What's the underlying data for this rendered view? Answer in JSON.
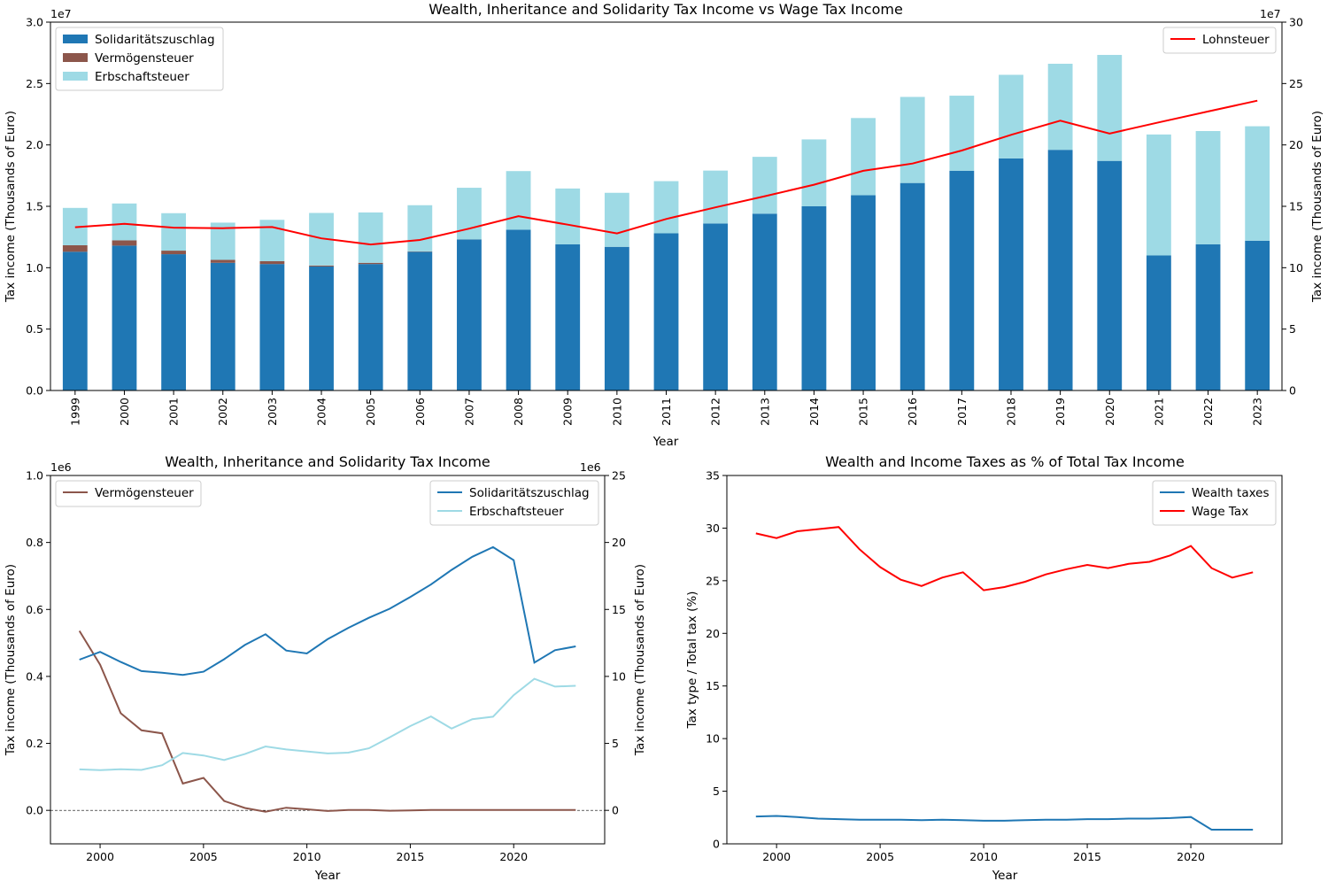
{
  "chart_data": [
    {
      "type": "bar",
      "title": "Wealth, Inheritance and Solidarity Tax Income vs Wage Tax Income",
      "xlabel": "Year",
      "ylabel": "Tax income (Thousands of Euro)",
      "ylabel_right": "Tax income (Thousands of Euro)",
      "ylim": [
        0,
        30000000
      ],
      "ylim_right": [
        0,
        300000000
      ],
      "y_offset_label": "1e7",
      "y_offset_label_right": "1e7",
      "yticks": [
        "0.0",
        "0.5",
        "1.0",
        "1.5",
        "2.0",
        "2.5",
        "3.0"
      ],
      "yticks_right": [
        "0",
        "5",
        "10",
        "15",
        "20",
        "25",
        "30"
      ],
      "stacked": true,
      "categories": [
        "1999",
        "2000",
        "2001",
        "2002",
        "2003",
        "2004",
        "2005",
        "2006",
        "2007",
        "2008",
        "2009",
        "2010",
        "2011",
        "2012",
        "2013",
        "2014",
        "2015",
        "2016",
        "2017",
        "2018",
        "2019",
        "2020",
        "2021",
        "2022",
        "2023"
      ],
      "series": [
        {
          "name": "Solidaritätszuschlag",
          "color": "#1f77b4",
          "values": [
            11300000,
            11800000,
            11100000,
            10400000,
            10300000,
            10100000,
            10300000,
            11300000,
            12300000,
            13100000,
            11900000,
            11700000,
            12800000,
            13600000,
            14400000,
            15000000,
            15900000,
            16900000,
            17900000,
            18900000,
            19600000,
            18700000,
            11000000,
            11900000,
            12200000
          ]
        },
        {
          "name": "Vermögensteuer",
          "color": "#8c564b",
          "values": [
            530000,
            430000,
            290000,
            240000,
            230000,
            80000,
            100000,
            30000,
            10000,
            0,
            0,
            0,
            0,
            0,
            0,
            0,
            0,
            0,
            0,
            0,
            0,
            0,
            0,
            0,
            0
          ]
        },
        {
          "name": "Erbschaftsteuer",
          "color": "#9edae5",
          "values": [
            3040000,
            3000000,
            3050000,
            3030000,
            3370000,
            4280000,
            4100000,
            3760000,
            4200000,
            4770000,
            4550000,
            4400000,
            4250000,
            4310000,
            4630000,
            5450000,
            6290000,
            7010000,
            6110000,
            6810000,
            7010000,
            8630000,
            9850000,
            9230000,
            9320000
          ]
        },
        {
          "name": "Lohnsteuer",
          "color": "#ff0000",
          "axis": "right",
          "type": "line",
          "values": [
            133000000,
            135700000,
            132600000,
            132200000,
            133100000,
            123900000,
            118900000,
            122600000,
            131800000,
            141900000,
            135100000,
            127900000,
            139700000,
            149100000,
            158200000,
            167600000,
            178900000,
            184800000,
            195400000,
            208200000,
            219700000,
            209300000,
            218400000,
            227200000,
            236000000
          ]
        }
      ],
      "legend": [
        {
          "position": "top-left",
          "entries": [
            "Solidaritätszuschlag",
            "Vermögensteuer",
            "Erbschaftsteuer"
          ]
        },
        {
          "position": "top-right",
          "entries": [
            "Lohnsteuer"
          ]
        }
      ]
    },
    {
      "type": "line",
      "title": "Wealth, Inheritance and Solidarity Tax Income",
      "xlabel": "Year",
      "ylabel": "Tax income (Thousands of Euro)",
      "ylabel_right": "Tax income (Thousands of Euro)",
      "y_offset_label": "1e6",
      "y_offset_label_right": "1e6",
      "xlim": [
        1997.6,
        2024.4
      ],
      "xticks": [
        "2000",
        "2005",
        "2010",
        "2015",
        "2020"
      ],
      "ylim": [
        -100000,
        1000000
      ],
      "ylim_right": [
        -2500000,
        25000000
      ],
      "yticks": [
        "0.0",
        "0.2",
        "0.4",
        "0.6",
        "0.8",
        "1.0"
      ],
      "yticks_right": [
        "0",
        "5",
        "10",
        "15",
        "20",
        "25"
      ],
      "zero_line": true,
      "x": [
        1999,
        2000,
        2001,
        2002,
        2003,
        2004,
        2005,
        2006,
        2007,
        2008,
        2009,
        2010,
        2011,
        2012,
        2013,
        2014,
        2015,
        2016,
        2017,
        2018,
        2019,
        2020,
        2021,
        2022,
        2023
      ],
      "series": [
        {
          "name": "Vermögensteuer",
          "axis": "left",
          "color": "#8c564b",
          "values": [
            536000,
            435000,
            290000,
            239000,
            230000,
            80000,
            97000,
            28000,
            7000,
            -4000,
            8000,
            3000,
            -2000,
            1000,
            1000,
            -1000,
            0,
            1000,
            1000,
            1000,
            1000,
            1000,
            1000,
            1000,
            1000
          ]
        },
        {
          "name": "Solidaritätszuschlag",
          "axis": "right",
          "color": "#1f77b4",
          "values": [
            11250000,
            11830000,
            11080000,
            10400000,
            10280000,
            10110000,
            10350000,
            11280000,
            12350000,
            13150000,
            11930000,
            11710000,
            12780000,
            13620000,
            14380000,
            15050000,
            15930000,
            16860000,
            17950000,
            18930000,
            19650000,
            18680000,
            11030000,
            11960000,
            12240000
          ]
        },
        {
          "name": "Erbschaftsteuer",
          "axis": "right",
          "color": "#9edae5",
          "values": [
            3060000,
            3000000,
            3070000,
            3020000,
            3370000,
            4280000,
            4100000,
            3760000,
            4200000,
            4770000,
            4550000,
            4400000,
            4250000,
            4310000,
            4630000,
            5450000,
            6290000,
            7010000,
            6110000,
            6810000,
            6990000,
            8600000,
            9820000,
            9240000,
            9300000
          ]
        }
      ],
      "legend": [
        {
          "position": "top-left",
          "entries": [
            "Vermögensteuer"
          ]
        },
        {
          "position": "top-right",
          "entries": [
            "Solidaritätszuschlag",
            "Erbschaftsteuer"
          ]
        }
      ]
    },
    {
      "type": "line",
      "title": "Wealth and Income Taxes as % of Total Tax Income",
      "xlabel": "Year",
      "ylabel": "Tax type / Total tax (%)",
      "xlim": [
        1997.6,
        2024.4
      ],
      "xticks": [
        "2000",
        "2005",
        "2010",
        "2015",
        "2020"
      ],
      "ylim": [
        0,
        35
      ],
      "yticks": [
        "0",
        "5",
        "10",
        "15",
        "20",
        "25",
        "30",
        "35"
      ],
      "x": [
        1999,
        2000,
        2001,
        2002,
        2003,
        2004,
        2005,
        2006,
        2007,
        2008,
        2009,
        2010,
        2011,
        2012,
        2013,
        2014,
        2015,
        2016,
        2017,
        2018,
        2019,
        2020,
        2021,
        2022,
        2023
      ],
      "series": [
        {
          "name": "Wealth taxes",
          "color": "#1f77b4",
          "values": [
            2.6,
            2.65,
            2.55,
            2.4,
            2.35,
            2.3,
            2.3,
            2.3,
            2.25,
            2.3,
            2.25,
            2.2,
            2.2,
            2.25,
            2.3,
            2.3,
            2.35,
            2.35,
            2.4,
            2.4,
            2.45,
            2.55,
            1.35,
            1.35,
            1.35
          ]
        },
        {
          "name": "Wage Tax",
          "color": "#ff0000",
          "values": [
            29.5,
            29.05,
            29.7,
            29.9,
            30.1,
            28.0,
            26.3,
            25.1,
            24.5,
            25.3,
            25.8,
            24.1,
            24.4,
            24.9,
            25.6,
            26.1,
            26.5,
            26.2,
            26.6,
            26.8,
            27.4,
            28.3,
            26.2,
            25.3,
            25.8
          ]
        }
      ],
      "legend": [
        {
          "position": "top-right",
          "entries": [
            "Wealth taxes",
            "Wage Tax"
          ]
        }
      ]
    }
  ]
}
